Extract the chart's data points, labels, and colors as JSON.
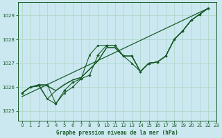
{
  "title": "Graphe pression niveau de la mer (hPa)",
  "bg_color": "#cbe8f0",
  "grid_color": "#b0d8cc",
  "line_color": "#1a5c2a",
  "xlim": [
    -0.5,
    23
  ],
  "ylim": [
    1024.6,
    1029.55
  ],
  "yticks": [
    1025,
    1026,
    1027,
    1028,
    1029
  ],
  "xticks": [
    0,
    1,
    2,
    3,
    4,
    5,
    6,
    7,
    8,
    9,
    10,
    11,
    12,
    13,
    14,
    15,
    16,
    17,
    18,
    19,
    20,
    21,
    22,
    23
  ],
  "trend_line": [
    [
      0,
      22
    ],
    [
      1025.6,
      1029.3
    ]
  ],
  "series1": {
    "x": [
      0,
      1,
      2,
      3,
      4,
      5,
      6,
      7,
      8,
      9,
      10,
      11,
      12,
      13,
      14,
      15,
      16,
      17,
      18,
      19,
      20,
      21,
      22
    ],
    "y": [
      1025.75,
      1026.0,
      1026.05,
      1026.05,
      1025.85,
      1026.1,
      1026.3,
      1026.4,
      1026.75,
      1027.1,
      1027.65,
      1027.65,
      1027.3,
      1027.3,
      1026.65,
      1027.0,
      1027.05,
      1027.3,
      1028.0,
      1028.35,
      1028.8,
      1029.05,
      1029.3
    ]
  },
  "series2": {
    "x": [
      0,
      1,
      2,
      3,
      4,
      5,
      6,
      7,
      8,
      9,
      10,
      11,
      12,
      13,
      14,
      15,
      16,
      17,
      18,
      19,
      20,
      21,
      22
    ],
    "y": [
      1025.75,
      1026.0,
      1026.05,
      1025.5,
      1025.85,
      1026.1,
      1026.3,
      1026.4,
      1026.75,
      1027.1,
      1027.65,
      1027.65,
      1027.3,
      1027.3,
      1026.65,
      1027.0,
      1027.05,
      1027.3,
      1028.0,
      1028.35,
      1028.8,
      1029.05,
      1029.3
    ]
  },
  "series3": {
    "x": [
      0,
      1,
      2,
      3,
      4,
      5,
      6,
      7,
      8,
      9,
      10,
      11,
      12,
      13,
      14,
      15,
      16,
      17,
      18,
      19,
      20,
      21,
      22
    ],
    "y": [
      1025.75,
      1026.0,
      1026.05,
      1026.05,
      1025.85,
      1026.1,
      1026.3,
      1026.4,
      1026.75,
      1027.1,
      1027.65,
      1027.65,
      1027.3,
      1027.3,
      1026.65,
      1027.0,
      1027.05,
      1027.3,
      1028.0,
      1028.35,
      1028.8,
      1029.05,
      1029.3
    ]
  },
  "jagged_series": {
    "x": [
      0,
      1,
      2,
      3,
      4,
      5,
      6,
      7,
      8,
      9,
      10,
      11,
      12,
      13,
      14,
      15,
      16,
      17,
      18,
      19,
      20,
      21,
      22
    ],
    "y": [
      1025.75,
      1026.0,
      1026.1,
      1025.5,
      1025.3,
      1025.75,
      1026.0,
      1026.35,
      1027.35,
      1027.75,
      1027.75,
      1027.75,
      1027.3,
      1027.0,
      1026.65,
      1027.0,
      1027.05,
      1027.3,
      1028.0,
      1028.35,
      1028.8,
      1029.05,
      1029.3
    ]
  },
  "main_series": {
    "x": [
      0,
      1,
      2,
      3,
      4,
      5,
      6,
      7,
      8,
      9,
      10,
      11,
      12,
      13,
      14,
      15,
      16,
      17,
      18,
      19,
      20,
      21,
      22
    ],
    "y": [
      1025.75,
      1026.0,
      1026.1,
      1026.1,
      1025.3,
      1025.85,
      1026.2,
      1026.35,
      1026.5,
      1027.35,
      1027.75,
      1027.75,
      1027.3,
      1027.3,
      1026.65,
      1027.0,
      1027.05,
      1027.3,
      1028.0,
      1028.35,
      1028.8,
      1029.05,
      1029.3
    ]
  }
}
